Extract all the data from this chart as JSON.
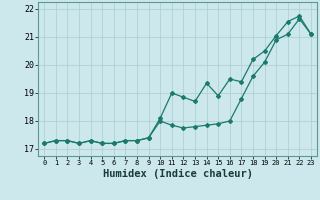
{
  "title": "",
  "xlabel": "Humidex (Indice chaleur)",
  "bg_color": "#cce8ec",
  "grid_color": "#aaccd0",
  "line_color": "#1a7a6e",
  "x_data": [
    0,
    1,
    2,
    3,
    4,
    5,
    6,
    7,
    8,
    9,
    10,
    11,
    12,
    13,
    14,
    15,
    16,
    17,
    18,
    19,
    20,
    21,
    22,
    23
  ],
  "series1": [
    17.2,
    17.3,
    17.3,
    17.2,
    17.3,
    17.2,
    17.2,
    17.3,
    17.3,
    17.4,
    18.1,
    19.0,
    18.85,
    18.7,
    19.35,
    18.9,
    19.5,
    19.4,
    20.2,
    20.5,
    21.05,
    21.55,
    21.75,
    21.1
  ],
  "series2": [
    17.2,
    17.3,
    17.3,
    17.2,
    17.3,
    17.2,
    17.2,
    17.3,
    17.3,
    17.4,
    18.0,
    17.85,
    17.75,
    17.8,
    17.85,
    17.9,
    18.0,
    18.8,
    19.6,
    20.1,
    20.9,
    21.1,
    21.65,
    21.1
  ],
  "ylim": [
    16.75,
    22.25
  ],
  "xlim": [
    -0.5,
    23.5
  ],
  "yticks": [
    17,
    18,
    19,
    20,
    21,
    22
  ],
  "xtick_fontsize": 5.0,
  "ytick_fontsize": 6.0,
  "xlabel_fontsize": 7.5,
  "marker": "D",
  "markersize": 2.0,
  "linewidth": 0.9
}
